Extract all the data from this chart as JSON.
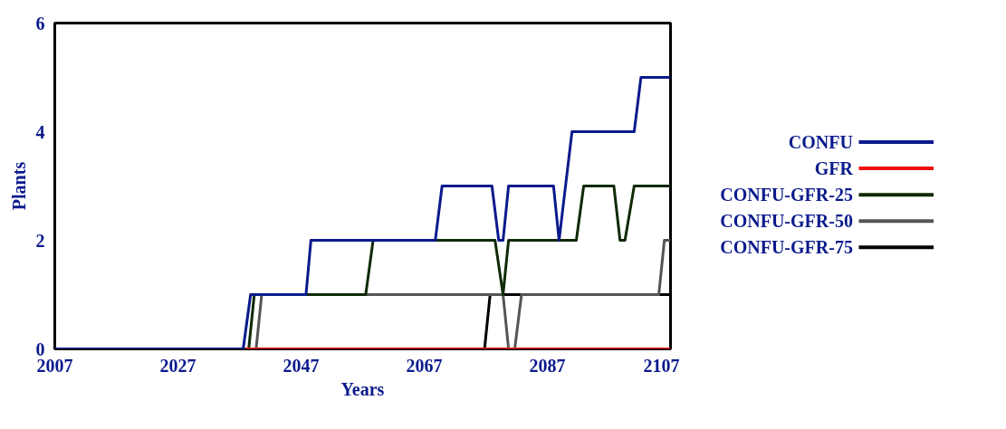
{
  "chart_data": {
    "type": "line",
    "xlabel": "Years",
    "ylabel": "Plants",
    "xlim": [
      2007,
      2107
    ],
    "xticks": [
      2007,
      2027,
      2047,
      2067,
      2087,
      2107
    ],
    "ylim": [
      0,
      6
    ],
    "yticks": [
      0,
      2,
      4,
      6
    ],
    "grid": false,
    "legend": "right",
    "line_style": "solid",
    "marker": "none",
    "series": [
      {
        "name": "CONFU",
        "color": "#0a1a8c",
        "x": [
          2007,
          2037.6,
          2038.8,
          2047.8,
          2048.6,
          2068.8,
          2069.9,
          2078.0,
          2079.1,
          2079.8,
          2080.7,
          2088.0,
          2088.9,
          2091.0,
          2101.1,
          2102.2,
          2107
        ],
        "values": [
          0,
          0,
          1,
          1,
          2,
          2,
          3,
          3,
          2,
          2,
          3,
          3,
          2,
          4,
          4,
          5,
          5
        ]
      },
      {
        "name": "GFR",
        "color": "#ee1111",
        "x": [
          2037.9,
          2107
        ],
        "values": [
          0,
          0
        ]
      },
      {
        "name": "CONFU-GFR-25",
        "color": "#0f2a05",
        "x": [
          2007,
          2038.5,
          2039.4,
          2057.5,
          2058.7,
          2078.5,
          2079.8,
          2080.7,
          2091.7,
          2092.9,
          2097.8,
          2098.8,
          2099.6,
          2101.1,
          2107
        ],
        "values": [
          0,
          0,
          1,
          1,
          2,
          2,
          1,
          2,
          2,
          3,
          3,
          2,
          2,
          3,
          3
        ]
      },
      {
        "name": "CONFU-GFR-50",
        "color": "#555555",
        "x": [
          2007,
          2039.7,
          2040.6,
          2079.8,
          2080.7,
          2081.7,
          2082.8,
          2105.1,
          2106.0,
          2107
        ],
        "values": [
          0,
          0,
          1,
          1,
          0,
          0,
          1,
          1,
          2,
          2
        ]
      },
      {
        "name": "CONFU-GFR-75",
        "color": "#000000",
        "x": [
          2007,
          2076.8,
          2077.7,
          2107
        ],
        "values": [
          0,
          0,
          1,
          1
        ]
      }
    ]
  }
}
